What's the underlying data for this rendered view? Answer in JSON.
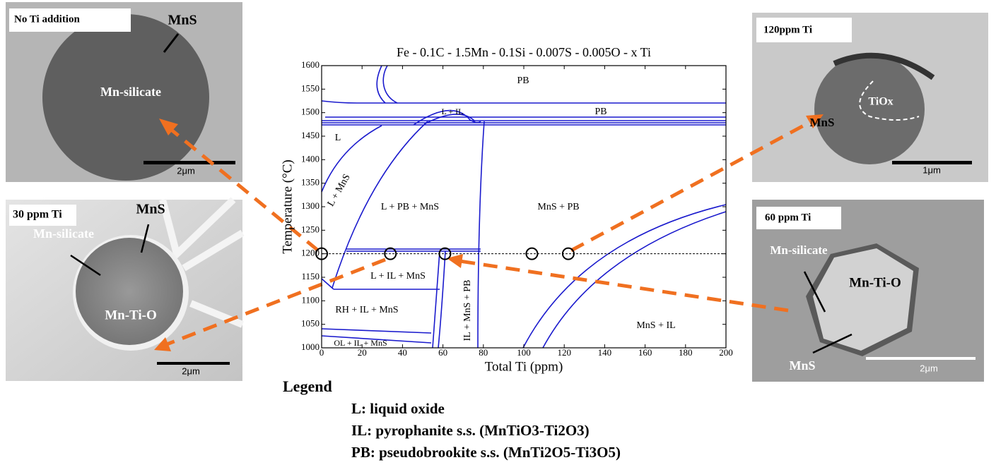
{
  "chart_data": {
    "type": "scatter",
    "title": "Fe - 0.1C - 1.5Mn - 0.1Si - 0.007S - 0.005O - x Ti",
    "xlabel": "Total Ti (ppm)",
    "ylabel": "Temperature (°C)",
    "xlim": [
      0,
      200
    ],
    "ylim": [
      1000,
      1600
    ],
    "xticks": [
      0,
      20,
      40,
      60,
      80,
      100,
      120,
      140,
      160,
      180,
      200
    ],
    "yticks": [
      1000,
      1050,
      1100,
      1150,
      1200,
      1250,
      1300,
      1350,
      1400,
      1450,
      1500,
      1550,
      1600
    ],
    "x": [
      0,
      34,
      61,
      104,
      122
    ],
    "values": [
      1200,
      1200,
      1200,
      1200,
      1200
    ],
    "reference_line": 1200,
    "annotations": [
      "PB",
      "PB",
      "L + IL",
      "L",
      "L + MnS",
      "L + PB + MnS",
      "MnS + PB",
      "L + IL + MnS",
      "RH + IL + MnS",
      "IL + MnS + PB",
      "OL + IL + MnS",
      "MnS + IL"
    ]
  },
  "panels": [
    {
      "title": "No Ti addition",
      "labels": [
        "MnS",
        "Mn-silicate"
      ],
      "scale_bar": "2μm"
    },
    {
      "title": "30 ppm Ti",
      "labels": [
        "MnS",
        "Mn-silicate",
        "Mn-Ti-O"
      ],
      "scale_bar": "2μm"
    },
    {
      "title": "120ppm Ti",
      "labels": [
        "TiOx",
        "MnS"
      ],
      "scale_bar": "1μm"
    },
    {
      "title": "60 ppm Ti",
      "labels": [
        "Mn-silicate",
        "Mn-Ti-O",
        "MnS"
      ],
      "scale_bar": "2μm"
    }
  ],
  "legend": {
    "title": "Legend",
    "entries": [
      "L: liquid oxide",
      "IL: pyrophanite s.s.  (MnTiO3-Ti2O3)",
      "PB: pseudobrookite s.s. (MnTi2O5-Ti3O5)"
    ]
  }
}
